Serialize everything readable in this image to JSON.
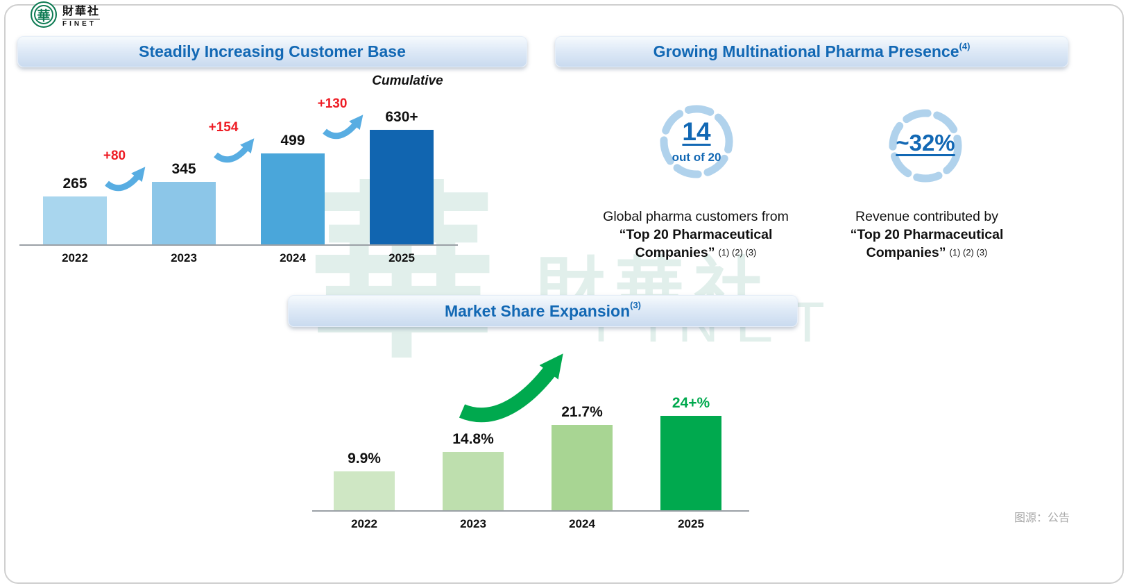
{
  "logo": {
    "glyph": "華",
    "chinese": "財華社",
    "english": "FINET"
  },
  "colors": {
    "heading_blue": "#1268b4",
    "stat_blue": "#1268b4",
    "delta_red": "#ee1c24",
    "arrow_blue": "#58ade2",
    "ring_blue": "#b0d2ec",
    "green": "#00a94e",
    "axis_gray": "#9aa0a6",
    "source_gray": "#a8a8a8",
    "watermark_teal": "#8fc4b4",
    "logo_green": "#0c7a52"
  },
  "banners": {
    "customer_base": {
      "label": "Steadily Increasing Customer Base",
      "sup": ""
    },
    "pharma_presence": {
      "label": "Growing Multinational Pharma Presence",
      "sup": "(4)"
    },
    "market_share": {
      "label": "Market Share Expansion",
      "sup": "(3)"
    }
  },
  "stats": [
    {
      "value": "14",
      "sub": "out of 20",
      "line1": "Global pharma customers from",
      "line2": "“Top 20 Pharmaceutical",
      "line3": "Companies”",
      "footnotes": "(1) (2) (3)"
    },
    {
      "value": "~32%",
      "sub": "",
      "line1": "Revenue contributed by",
      "line2": "“Top 20 Pharmaceutical",
      "line3": "Companies”",
      "footnotes": "(1) (2) (3)"
    }
  ],
  "source": "图源：公告",
  "watermark": {
    "glyph": "華",
    "chinese": "財華社",
    "english": "FINET"
  },
  "chart_data": [
    {
      "id": "customer-base-chart",
      "type": "bar",
      "title": "Steadily Increasing Customer Base",
      "note": "Cumulative",
      "categories": [
        "2022",
        "2023",
        "2024",
        "2025"
      ],
      "values": [
        265,
        345,
        499,
        630
      ],
      "labels": [
        "265",
        "345",
        "499",
        "630+"
      ],
      "deltas": [
        "+80",
        "+154",
        "+130"
      ],
      "bar_colors": [
        "#a9d6ee",
        "#8cc6e8",
        "#4aa6da",
        "#1165b0"
      ],
      "label_colors": [
        "#111111",
        "#111111",
        "#111111",
        "#111111"
      ],
      "xlabel": "",
      "ylabel": "",
      "ylim": [
        0,
        700
      ],
      "grid": false,
      "legend": false
    },
    {
      "id": "market-share-chart",
      "type": "bar",
      "title": "Market Share Expansion",
      "note": "",
      "categories": [
        "2022",
        "2023",
        "2024",
        "2025"
      ],
      "values": [
        9.9,
        14.8,
        21.7,
        24
      ],
      "labels": [
        "9.9%",
        "14.8%",
        "21.7%",
        "24+%"
      ],
      "deltas": [],
      "bar_colors": [
        "#cfe7c4",
        "#bedfae",
        "#a8d593",
        "#00a94e"
      ],
      "label_colors": [
        "#111111",
        "#111111",
        "#111111",
        "#00a94e"
      ],
      "xlabel": "",
      "ylabel": "",
      "ylim": [
        0,
        30
      ],
      "grid": false,
      "legend": false
    }
  ]
}
